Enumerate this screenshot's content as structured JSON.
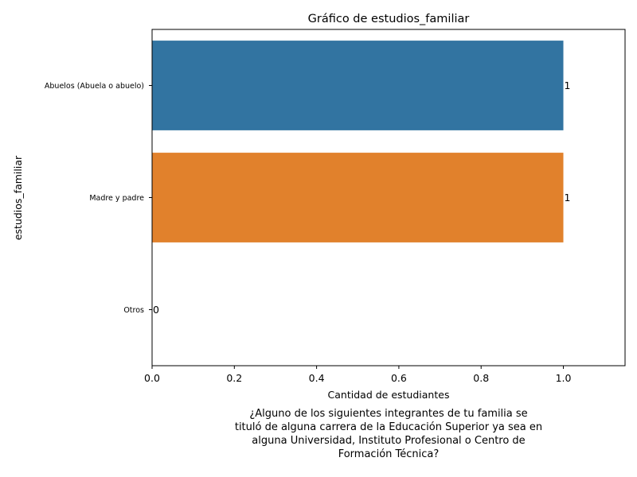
{
  "chart_data": {
    "type": "bar",
    "orientation": "horizontal",
    "title": "Gráfico de estudios_familiar",
    "xlabel": "Cantidad de estudiantes",
    "ylabel": "estudios_familiar",
    "categories": [
      "Abuelos (Abuela o abuelo)",
      "Madre y padre",
      "Otros"
    ],
    "values": [
      1,
      1,
      0
    ],
    "data_labels": [
      "1",
      "1",
      "0"
    ],
    "colors": [
      "#3274a1",
      "#e1812c",
      "#3a923a"
    ],
    "xlim": [
      0,
      1.15
    ],
    "xticks": [
      0.0,
      0.2,
      0.4,
      0.6,
      0.8,
      1.0
    ],
    "xtick_labels": [
      "0.0",
      "0.2",
      "0.4",
      "0.6",
      "0.8",
      "1.0"
    ],
    "grid": false
  },
  "caption": {
    "lines": [
      "¿Alguno de los siguientes integrantes de tu familia se",
      "tituló de alguna carrera de la Educación Superior ya sea en",
      "alguna Universidad, Instituto Profesional o Centro de",
      "Formación Técnica?"
    ]
  }
}
